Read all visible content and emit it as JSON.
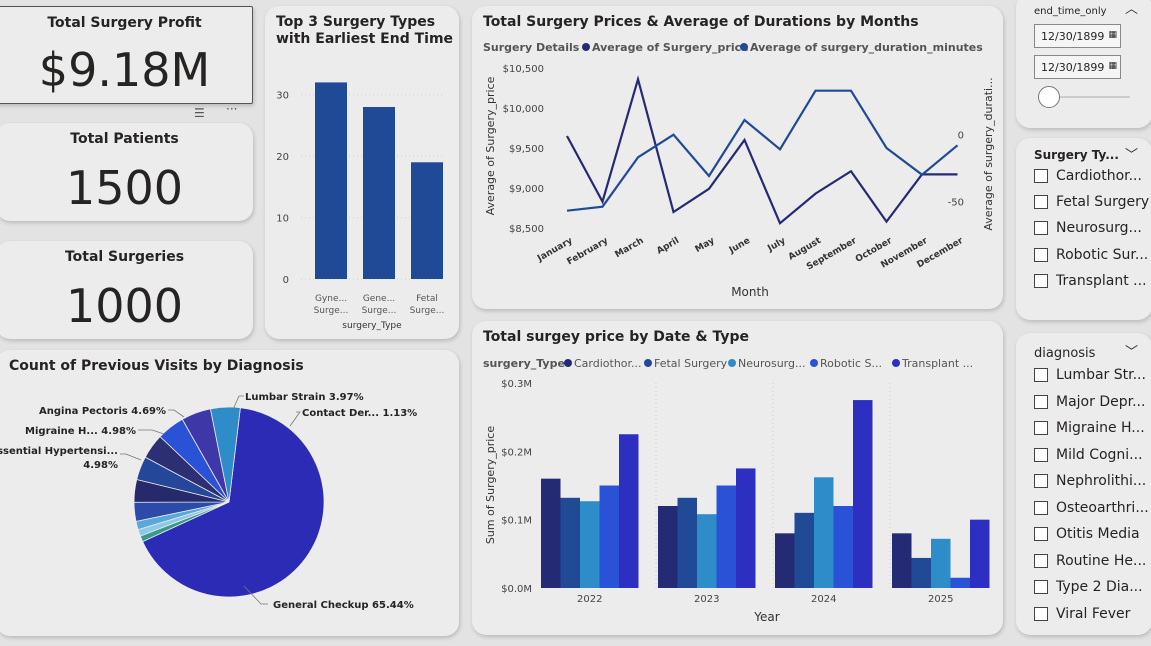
{
  "kpis": {
    "profit": {
      "title": "Total Surgery Profit",
      "value": "$9.18M"
    },
    "patients": {
      "title": "Total Patients",
      "value": "1500"
    },
    "surgeries": {
      "title": "Total Surgeries",
      "value": "1000"
    }
  },
  "top3": {
    "title_line1": "Top 3 Surgery Types",
    "title_line2": "with Earliest End Time",
    "xlabel": "surgery_Type",
    "y_ticks": [
      "30",
      "20",
      "10",
      "0"
    ],
    "cat_lines": [
      [
        "Gyne...",
        "Surge..."
      ],
      [
        "Gene...",
        "Surge..."
      ],
      [
        "Fetal",
        "Surge..."
      ]
    ]
  },
  "line_chart": {
    "title": "Total Surgery Prices & Average of Durations by Months",
    "legend_title": "Surgery Details",
    "legend_items": [
      "Average of Surgery_price",
      "Average of surgery_duration_minutes"
    ],
    "xlabel": "Month",
    "ylabel_left": "Average of Surgery_price",
    "ylabel_right": "Average of surgery_durati...",
    "left_ticks": [
      "$10,500",
      "$10,000",
      "$9,500",
      "$9,000",
      "$8,500"
    ],
    "right_ticks": [
      "0",
      "-50"
    ],
    "months": [
      "January",
      "February",
      "March",
      "April",
      "May",
      "June",
      "July",
      "August",
      "September",
      "October",
      "November",
      "December"
    ]
  },
  "pie": {
    "title": "Count of Previous Visits by Diagnosis",
    "labels": {
      "lumbar": "Lumbar Strain 3.97%",
      "contact": "Contact Der... 1.13%",
      "angina": "Angina Pectoris 4.69%",
      "migraine": "Migraine H... 4.98%",
      "essential_1": "Essential Hypertensi...",
      "essential_2": "4.98%",
      "general": "General Checkup 65.44%"
    }
  },
  "bar_chart": {
    "title": "Total surgey price by Date & Type",
    "legend_title": "surgery_Type",
    "legend_items": [
      "Cardiothor...",
      "Fetal Surgery",
      "Neurosurg...",
      "Robotic S...",
      "Transplant ..."
    ],
    "xlabel": "Year",
    "ylabel": "Sum of Surgery_price",
    "y_ticks": [
      "$0.3M",
      "$0.2M",
      "$0.1M",
      "$0.0M"
    ]
  },
  "slicer_date": {
    "title": "end_time_only",
    "start": "12/30/1899",
    "end": "12/30/1899"
  },
  "slicer_surgery": {
    "title": "Surgery Ty...",
    "items": [
      "Cardiothor...",
      "Fetal Surgery",
      "Neurosurg...",
      "Robotic Sur...",
      "Transplant ..."
    ]
  },
  "slicer_diagnosis": {
    "title": "diagnosis",
    "items": [
      "Lumbar Str...",
      "Major Depr...",
      "Migraine H...",
      "Mild Cogni...",
      "Nephrolithi...",
      "Osteoarthri...",
      "Otitis Media",
      "Routine He...",
      "Type 2 Dia...",
      "Viral Fever"
    ]
  },
  "colors": {
    "navy": "#252a75",
    "blue": "#214a96",
    "teal": "#2e8cc8",
    "royal": "#2a52d6",
    "violet": "#2c2fbf",
    "pie_main": "#2c2bb5"
  },
  "chart_data": [
    {
      "type": "bar",
      "title": "Top 3 Surgery Types with Earliest End Time",
      "xlabel": "surgery_Type",
      "categories": [
        "Gyne... Surge...",
        "Gene... Surge...",
        "Fetal Surge..."
      ],
      "values": [
        32,
        28,
        19
      ],
      "ylim": [
        0,
        35
      ]
    },
    {
      "type": "line",
      "title": "Total Surgery Prices & Average of Durations by Months",
      "x": [
        "January",
        "February",
        "March",
        "April",
        "May",
        "June",
        "July",
        "August",
        "September",
        "October",
        "November",
        "December"
      ],
      "series": [
        {
          "name": "Average of Surgery_price",
          "axis": "left",
          "values": [
            9650,
            8830,
            10360,
            8700,
            8990,
            9600,
            8560,
            8930,
            9210,
            8580,
            9170,
            9170
          ]
        },
        {
          "name": "Average of surgery_duration_minutes",
          "axis": "right",
          "values": [
            -57,
            -54,
            -17,
            0,
            -31,
            11,
            -11,
            33,
            33,
            -10,
            -30,
            -8
          ]
        }
      ],
      "ylim_left": [
        8500,
        10500
      ],
      "ylim_right": [
        -70,
        50
      ],
      "xlabel": "Month",
      "ylabel": "Average of Surgery_price",
      "ylabel_right": "Average of surgery_durati..."
    },
    {
      "type": "pie",
      "title": "Count of Previous Visits by Diagnosis",
      "slices": [
        {
          "label": "General Checkup",
          "value": 65.44,
          "color": "#2c2bb5"
        },
        {
          "label": "Essential Hypertensi...",
          "value": 4.98,
          "color": "#2e8cc8"
        },
        {
          "label": "Migraine H...",
          "value": 4.98,
          "color": "#3d37a8"
        },
        {
          "label": "Angina Pectoris",
          "value": 4.69,
          "color": "#2a52d6"
        },
        {
          "label": "",
          "value": 4.2,
          "color": "#2c2f72"
        },
        {
          "label": "Lumbar Strain",
          "value": 3.97,
          "color": "#24479a"
        },
        {
          "label": "",
          "value": 3.8,
          "color": "#262a6b"
        },
        {
          "label": "",
          "value": 3.2,
          "color": "#2c4aa8"
        },
        {
          "label": "",
          "value": 1.4,
          "color": "#5aa8d8"
        },
        {
          "label": "Contact Der...",
          "value": 1.13,
          "color": "#8fc8e8"
        },
        {
          "label": "",
          "value": 1.0,
          "color": "#3a9a8a"
        }
      ]
    },
    {
      "type": "bar",
      "title": "Total surgey price by Date & Type",
      "categories": [
        "2022",
        "2023",
        "2024",
        "2025"
      ],
      "series": [
        {
          "name": "Cardiothor...",
          "values": [
            0.16,
            0.12,
            0.08,
            0.08
          ]
        },
        {
          "name": "Fetal Surgery",
          "values": [
            0.132,
            0.132,
            0.11,
            0.044
          ]
        },
        {
          "name": "Neurosurg...",
          "values": [
            0.127,
            0.108,
            0.162,
            0.072
          ]
        },
        {
          "name": "Robotic S...",
          "values": [
            0.15,
            0.15,
            0.12,
            0.015
          ]
        },
        {
          "name": "Transplant ...",
          "values": [
            0.225,
            0.175,
            0.275,
            0.1
          ]
        }
      ],
      "xlabel": "Year",
      "ylabel": "Sum of Surgery_price",
      "ylim": [
        0,
        0.3
      ]
    }
  ]
}
